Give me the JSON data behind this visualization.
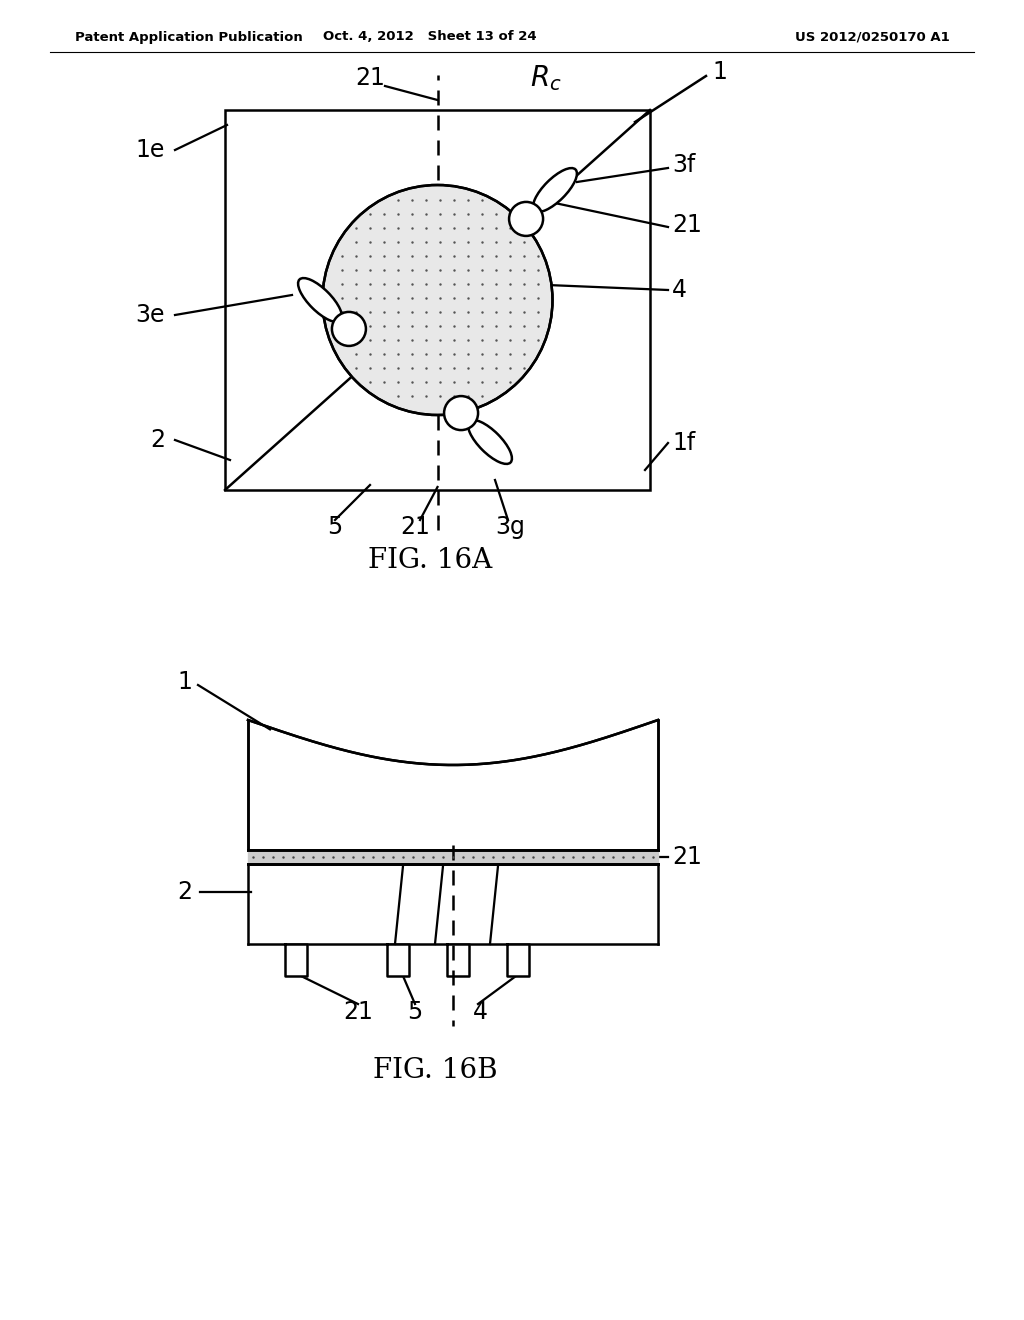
{
  "header_left": "Patent Application Publication",
  "header_center": "Oct. 4, 2012   Sheet 13 of 24",
  "header_right": "US 2012/0250170 A1",
  "fig_label_a": "FIG. 16A",
  "fig_label_b": "FIG. 16B",
  "background_color": "#ffffff",
  "line_color": "#000000",
  "lw": 1.8,
  "fs": 17
}
